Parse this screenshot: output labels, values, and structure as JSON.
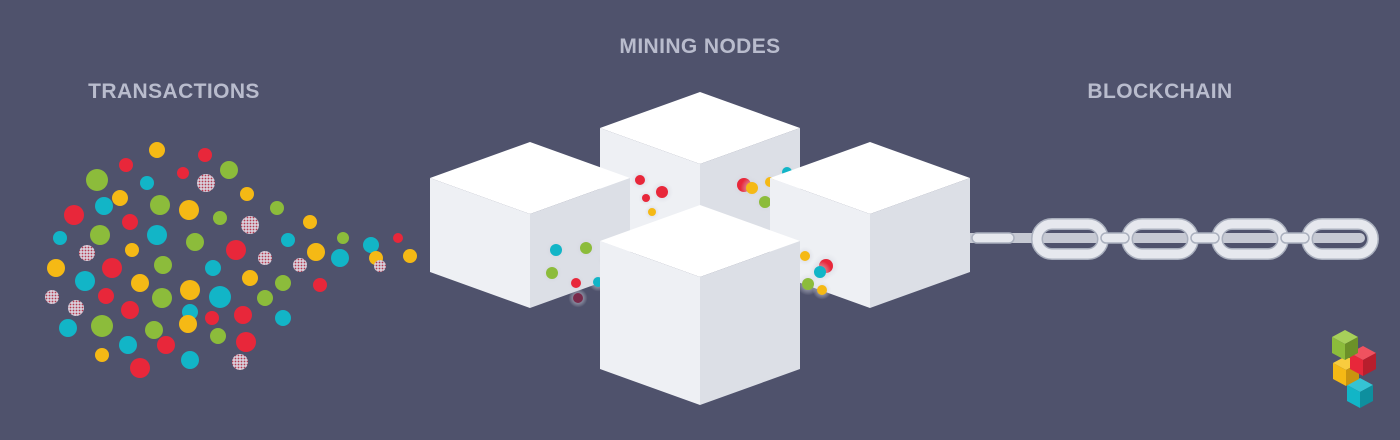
{
  "labels": {
    "transactions": "TRANSACTIONS",
    "mining_nodes": "MINING NODES",
    "blockchain": "BLOCKCHAIN"
  },
  "colors": {
    "background": "#4f526c",
    "label": "#b9bccd",
    "red": "#e8273a",
    "green": "#8cbc3b",
    "yellow": "#f5b915",
    "teal": "#12b5c7",
    "maroon": "#7a2a4a",
    "cube_top": "#ffffff",
    "cube_left": "#eef0f4",
    "cube_right": "#dcdfe6",
    "chain": "#e6e8ee"
  },
  "icons": {
    "transactions": "transaction-dots-cloud",
    "nodes": "mining-node-cubes",
    "chain": "blockchain-chain-links",
    "logo": "stacked-cubes-logo"
  }
}
